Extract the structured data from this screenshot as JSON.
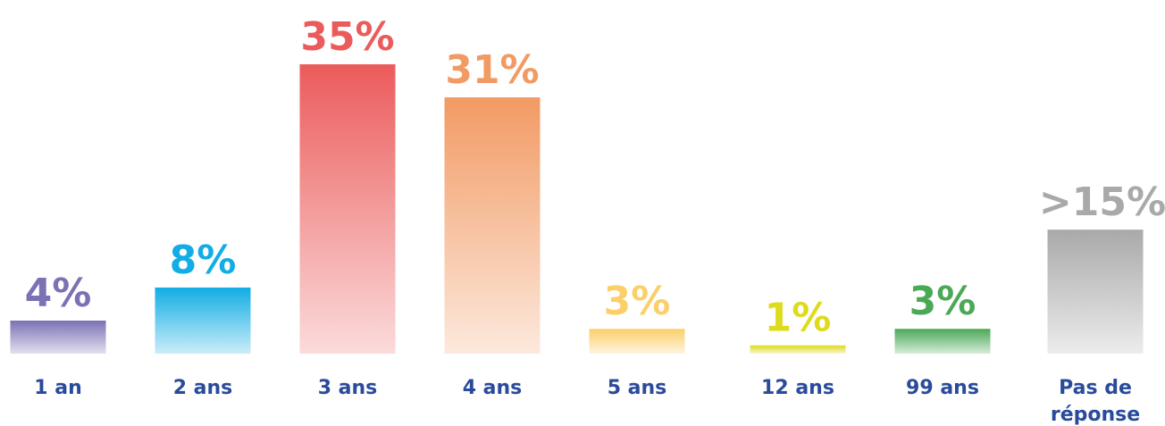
{
  "chart_data": {
    "type": "bar",
    "categories": [
      "1 an",
      "2 ans",
      "3 ans",
      "4 ans",
      "5 ans",
      "12 ans",
      "99 ans",
      "Pas de réponse"
    ],
    "values": [
      4,
      8,
      35,
      31,
      3,
      1,
      3,
      15
    ],
    "value_labels": [
      "4%",
      "8%",
      "35%",
      "31%",
      "3%",
      "1%",
      "3%",
      ">15%"
    ],
    "colors": [
      "#7b72b5",
      "#12ade4",
      "#ec5b5b",
      "#f29a63",
      "#fbcf6a",
      "#dedb1f",
      "#4aa955",
      "#a9a9a9"
    ]
  }
}
